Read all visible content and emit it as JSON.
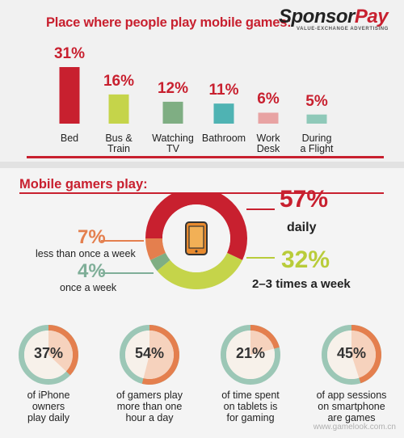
{
  "brand": {
    "name_part1": "Sponsor",
    "name_part2": "Pay",
    "tagline": "VALUE-EXCHANGE ADVERTISING"
  },
  "colors": {
    "red": "#c8202f",
    "lime": "#c5d44a",
    "sage": "#7fae83",
    "bathroom_red": "#d9534f",
    "salmon": "#e8a3a3",
    "teal": "#8fc9b9",
    "orange": "#e47f4e",
    "green": "#b9cc3a",
    "ring_grey": "#8fbfae"
  },
  "chart_data": [
    {
      "type": "bar",
      "title": "Place where people play mobile games:",
      "categories": [
        "Bed",
        "Bus & Train",
        "Watching TV",
        "Bathroom",
        "Work Desk",
        "During a Flight"
      ],
      "category_labels": [
        "Bed",
        "Bus &\nTrain",
        "Watching\nTV",
        "Bathroom",
        "Work\nDesk",
        "During\na Flight"
      ],
      "values": [
        31,
        16,
        12,
        11,
        6,
        5
      ],
      "value_labels": [
        "31%",
        "16%",
        "12%",
        "11%",
        "6%",
        "5%"
      ],
      "bar_colors": [
        "#c8202f",
        "#c5d44a",
        "#7fae83",
        "#4fb3b3",
        "#e8a3a3",
        "#8fc9b9"
      ],
      "ylim": [
        0,
        31
      ]
    },
    {
      "type": "pie",
      "title": "Mobile gamers play:",
      "slices": [
        {
          "label": "daily",
          "value": 57,
          "value_label": "57%",
          "color": "#c8202f"
        },
        {
          "label": "2–3 times a week",
          "value": 32,
          "value_label": "32%",
          "color": "#c5d44a"
        },
        {
          "label": "once a week",
          "value": 4,
          "value_label": "4%",
          "color": "#7fae83"
        },
        {
          "label": "less than once a week",
          "value": 7,
          "value_label": "7%",
          "color": "#e47f4e"
        }
      ],
      "center_icon": "smartphone-icon"
    },
    {
      "type": "pie",
      "title": "",
      "stats": [
        {
          "value": 37,
          "value_label": "37%",
          "label": "of iPhone\nowners\nplay daily"
        },
        {
          "value": 54,
          "value_label": "54%",
          "label": "of gamers play\nmore than one\nhour a day"
        },
        {
          "value": 21,
          "value_label": "21%",
          "label": "of time spent\non tablets is\nfor gaming"
        },
        {
          "value": 45,
          "value_label": "45%",
          "label": "of app sessions\non smartphone\nare games"
        }
      ]
    }
  ],
  "watermark": "www.gamelook.com.cn"
}
